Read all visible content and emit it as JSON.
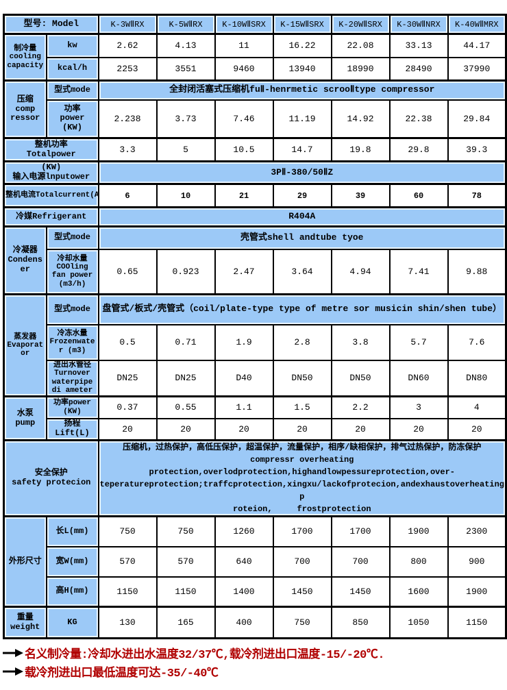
{
  "colors": {
    "cell_blue": "#9cc9f7",
    "border_black": "#000000",
    "note_red": "#b00000",
    "cell_white": "#ffffff"
  },
  "header": {
    "label": "型号: Model",
    "models": [
      "K-3WⅡRX",
      "K-5WⅡRX",
      "K-10WⅡSRX",
      "K-15WⅡSRX",
      "K-20WⅡSRX",
      "K-30WⅡNRX",
      "K-40WⅡMRX"
    ]
  },
  "cooling": {
    "group": "制冷量\ncooling\ncapacity",
    "kw_label": "kw",
    "kw": [
      "2.62",
      "4.13",
      "11",
      "16.22",
      "22.08",
      "33.13",
      "44.17"
    ],
    "kcal_label": "kcal/h",
    "kcal": [
      "2253",
      "3551",
      "9460",
      "13940",
      "18990",
      "28490",
      "37990"
    ]
  },
  "compressor": {
    "group": "压缩\ncomp\nressor",
    "mode_label": "型式mode",
    "mode": "全封闭活塞式压缩机fuⅡ-henrmetic scrooⅡtype compressor",
    "power_label": "功率\npower\n(KW)",
    "power": [
      "2.238",
      "3.73",
      "7.46",
      "11.19",
      "14.92",
      "22.38",
      "29.84"
    ]
  },
  "total_power": {
    "label": "整机功率\nTotalpower",
    "values": [
      "3.3",
      "5",
      "10.5",
      "14.7",
      "19.8",
      "29.8",
      "39.3"
    ]
  },
  "input_power": {
    "label": "(KW)\n输入电源lnputower",
    "value": "3PⅡ-380/50ⅡZ"
  },
  "total_current": {
    "label": "整机电流Totalcurrent(A)",
    "values": [
      "6",
      "10",
      "21",
      "29",
      "39",
      "60",
      "78"
    ]
  },
  "refrigerant": {
    "label": "冷媒Refrigerant",
    "value": "R404A"
  },
  "condenser": {
    "group": "冷凝器\nCondenser",
    "mode_label": "型式mode",
    "mode": "壳管式shell andtube tyoe",
    "water_label": "冷却水量\nCOOling\nfan power\n(m3/h)",
    "water": [
      "0.65",
      "0.923",
      "2.47",
      "3.64",
      "4.94",
      "7.41",
      "9.88"
    ]
  },
  "evaporator": {
    "group": "蒸发器\nEvaporator",
    "mode_label": "型式mode",
    "mode": "盘管式/板式/壳管式（coil/plate-type type of metre sor musicin shin/shen tube）",
    "frozen_label": "冷冻水量\nFrozenwater (m3)",
    "frozen": [
      "0.5",
      "0.71",
      "1.9",
      "2.8",
      "3.8",
      "5.7",
      "7.6"
    ],
    "pipe_label": "进出水管径\nTurnover\nwaterpipe\ndi ameter",
    "pipe": [
      "DN25",
      "DN25",
      "D40",
      "DN50",
      "DN50",
      "DN60",
      "DN80"
    ]
  },
  "pump": {
    "group": "水泵\npump",
    "power_label": "功率power\n(KW)",
    "power": [
      "0.37",
      "0.55",
      "1.1",
      "1.5",
      "2.2",
      "3",
      "4"
    ],
    "lift_label": "扬程\nLift(L)",
    "lift": [
      "20",
      "20",
      "20",
      "20",
      "20",
      "20",
      "20"
    ]
  },
  "safety": {
    "label": "安全保护\nsafety protecion",
    "text": "压缩机，过热保护，高低压保护，超温保护，流量保护，相序/缺相保护，排气过热保护，防冻保护\ncompressr overheating\nprotection,overlodprotection,highandlowpessureprotection,over-\nteperatureprotection;traffcprotection,xingxu/lackofprotecion,andexhaustoverheatingp\nroteion,     frostprotection"
  },
  "dimensions": {
    "group": "外形尺寸",
    "length_label": "长L(mm)",
    "length": [
      "750",
      "750",
      "1260",
      "1700",
      "1700",
      "1900",
      "2300"
    ],
    "width_label": "宽W(mm)",
    "width": [
      "570",
      "570",
      "640",
      "700",
      "700",
      "800",
      "900"
    ],
    "height_label": "高H(mm)",
    "height": [
      "1150",
      "1150",
      "1400",
      "1450",
      "1450",
      "1600",
      "1900"
    ]
  },
  "weight": {
    "group": "重量\nweight",
    "unit": "KG",
    "values": [
      "130",
      "165",
      "400",
      "750",
      "850",
      "1050",
      "1150"
    ]
  },
  "notes": [
    "名义制冷量:冷却水进出水温度32/37℃,载冷剂进出口温度-15/-20℃.",
    "载冷剂进出口最低温度可达-35/-40℃"
  ]
}
